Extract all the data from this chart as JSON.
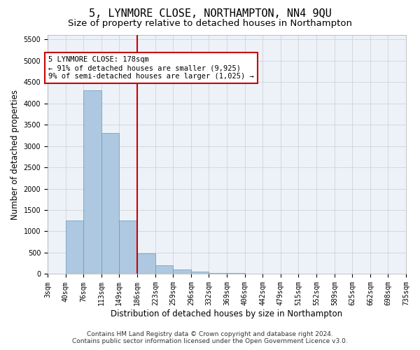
{
  "title": "5, LYNMORE CLOSE, NORTHAMPTON, NN4 9QU",
  "subtitle": "Size of property relative to detached houses in Northampton",
  "xlabel": "Distribution of detached houses by size in Northampton",
  "ylabel": "Number of detached properties",
  "footer_line1": "Contains HM Land Registry data © Crown copyright and database right 2024.",
  "footer_line2": "Contains public sector information licensed under the Open Government Licence v3.0.",
  "annotation_title": "5 LYNMORE CLOSE: 178sqm",
  "annotation_line1": "← 91% of detached houses are smaller (9,925)",
  "annotation_line2": "9% of semi-detached houses are larger (1,025) →",
  "property_size": 178,
  "bar_left_edges": [
    3,
    40,
    76,
    113,
    149,
    186,
    223,
    259,
    296,
    332,
    369,
    406,
    442,
    479,
    515,
    552,
    589,
    625,
    662,
    698,
    735
  ],
  "bar_heights": [
    0,
    1250,
    4300,
    3300,
    1250,
    480,
    200,
    100,
    60,
    30,
    20,
    15,
    10,
    8,
    5,
    4,
    3,
    2,
    2,
    1,
    0
  ],
  "bar_color": "#adc8e0",
  "bar_edge_color": "#6699bb",
  "vline_color": "#cc0000",
  "vline_x": 186,
  "annotation_box_color": "#cc0000",
  "ylim": [
    0,
    5600
  ],
  "yticks": [
    0,
    500,
    1000,
    1500,
    2000,
    2500,
    3000,
    3500,
    4000,
    4500,
    5000,
    5500
  ],
  "grid_color": "#cccccc",
  "bg_color": "#edf2f9",
  "title_fontsize": 11,
  "subtitle_fontsize": 9.5,
  "axis_label_fontsize": 8.5,
  "tick_fontsize": 7,
  "annotation_fontsize": 7.5,
  "footer_fontsize": 6.5
}
